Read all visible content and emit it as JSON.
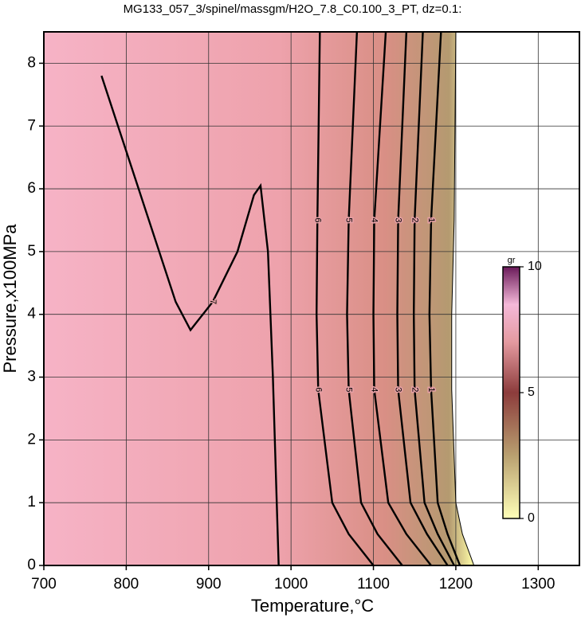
{
  "chart_data": {
    "type": "contour",
    "title": "MG133_057_3/spinel/massgm/H2O_7.8_C0.100_3_PT, dz=0.1:",
    "x_label": "Temperature,°C",
    "y_label": "Pressure,x100MPa",
    "xlim": [
      700,
      1350
    ],
    "xticks": [
      700,
      800,
      900,
      1000,
      1100,
      1200,
      1300
    ],
    "ylim": [
      0,
      8.5
    ],
    "yticks": [
      0,
      1,
      2,
      3,
      4,
      5,
      6,
      7,
      8
    ],
    "grid": true,
    "contours": [
      {
        "level": 0,
        "x": [
          1200,
          1198,
          1195,
          1195,
          1200,
          1208,
          1222
        ],
        "y": [
          8.5,
          5.5,
          4,
          2.8,
          1,
          0.5,
          0
        ]
      },
      {
        "level": 1,
        "x": [
          1182,
          1170,
          1168,
          1170,
          1178,
          1190,
          1205
        ],
        "y": [
          8.5,
          5.5,
          4,
          2.8,
          1,
          0.5,
          0
        ]
      },
      {
        "level": 2,
        "x": [
          1160,
          1150,
          1149,
          1150,
          1162,
          1178,
          1198
        ],
        "y": [
          8.5,
          5.5,
          4,
          2.8,
          1,
          0.5,
          0
        ]
      },
      {
        "level": 3,
        "x": [
          1140,
          1130,
          1129,
          1130,
          1145,
          1165,
          1190
        ],
        "y": [
          8.5,
          5.5,
          4,
          2.8,
          1,
          0.5,
          0
        ]
      },
      {
        "level": 4,
        "x": [
          1115,
          1101,
          1100,
          1101,
          1118,
          1140,
          1170
        ],
        "y": [
          8.5,
          5.5,
          4,
          2.8,
          1,
          0.5,
          0
        ]
      },
      {
        "level": 5,
        "x": [
          1080,
          1070,
          1068,
          1070,
          1085,
          1105,
          1135
        ],
        "y": [
          8.5,
          5.5,
          4,
          2.8,
          1,
          0.5,
          0
        ]
      },
      {
        "level": 6,
        "x": [
          1035,
          1032,
          1031,
          1033,
          1050,
          1070,
          1100
        ],
        "y": [
          8.5,
          5.5,
          4,
          2.8,
          1,
          0.5,
          0
        ]
      },
      {
        "level": 7,
        "x": [
          985,
          978,
          972,
          963,
          955,
          935,
          905,
          878,
          860,
          840,
          815,
          790,
          770
        ],
        "y": [
          0,
          3,
          5,
          6.05,
          5.9,
          5,
          4.2,
          3.75,
          4.2,
          5,
          6,
          7,
          7.8
        ]
      }
    ],
    "colorbar": {
      "label": "gr",
      "lim": [
        0,
        10
      ],
      "ticks": [
        0,
        5,
        10
      ]
    }
  }
}
